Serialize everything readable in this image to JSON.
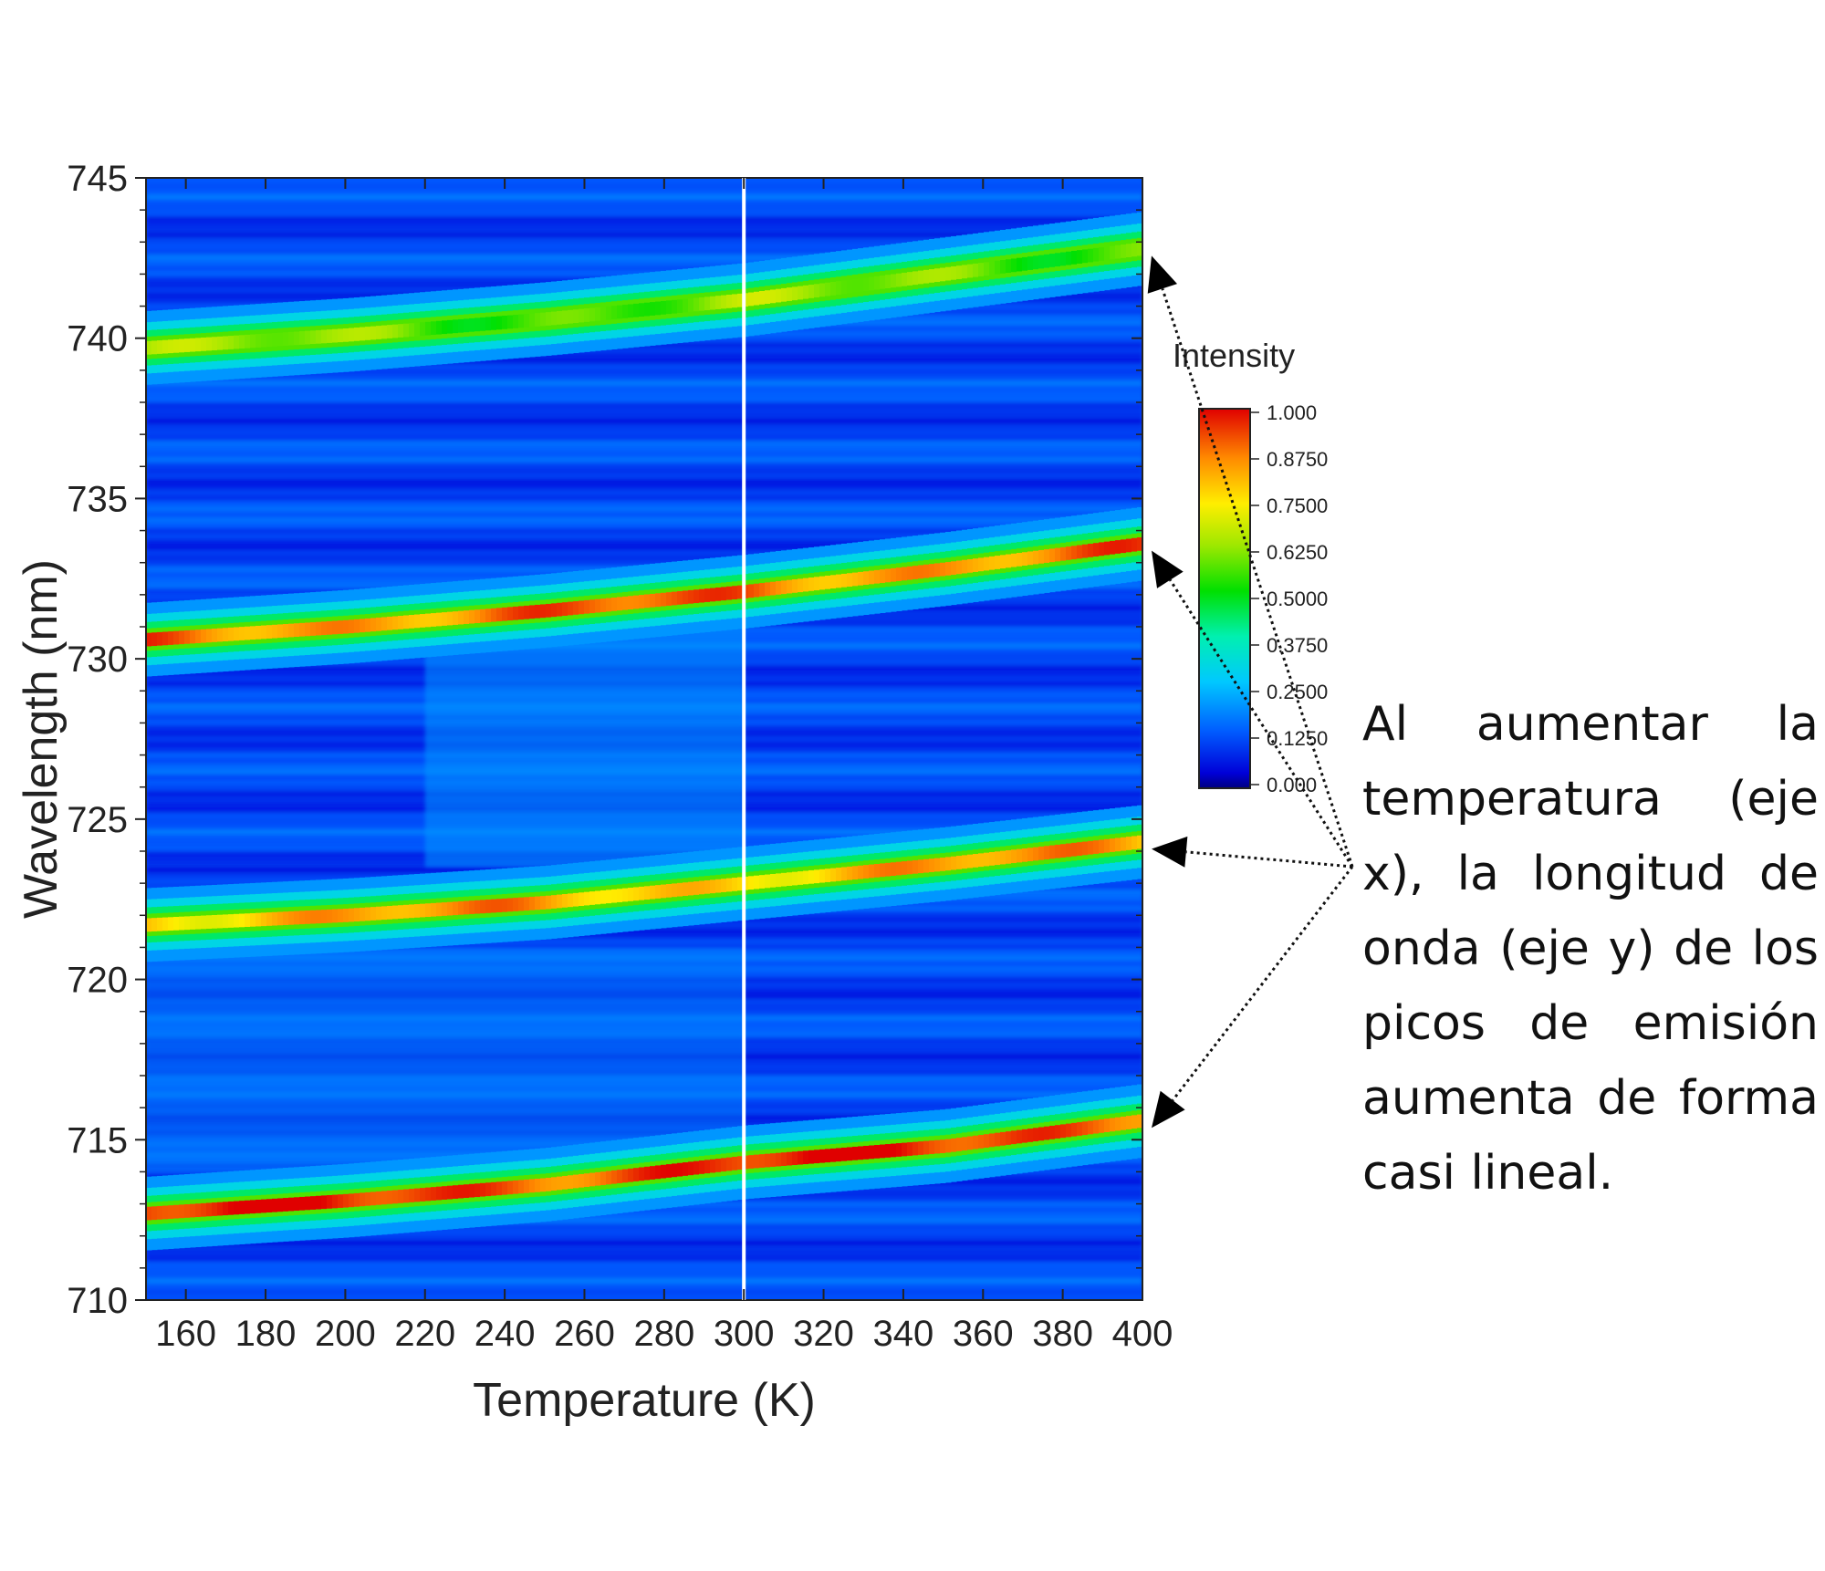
{
  "chart_data": {
    "type": "heatmap",
    "title": "",
    "xlabel": "Temperature (K)",
    "ylabel": "Wavelength (nm)",
    "xlim": [
      150,
      400
    ],
    "ylim": [
      710,
      745
    ],
    "x_ticks": [
      "160",
      "180",
      "200",
      "220",
      "240",
      "260",
      "280",
      "300",
      "320",
      "340",
      "360",
      "380",
      "400"
    ],
    "y_ticks": [
      "710",
      "715",
      "720",
      "725",
      "730",
      "735",
      "740",
      "745"
    ],
    "panel_split_x": 300,
    "colorbar": {
      "title": "Intensity",
      "range": [
        0,
        1
      ],
      "tick_labels": [
        "1.000",
        "0.8750",
        "0.7500",
        "0.6250",
        "0.5000",
        "0.3750",
        "0.2500",
        "0.1250",
        "0.000"
      ]
    },
    "emission_peaks": [
      {
        "points": [
          [
            150,
            739.7
          ],
          [
            200,
            740.1
          ],
          [
            250,
            740.6
          ],
          [
            300,
            741.2
          ],
          [
            350,
            742.0
          ],
          [
            400,
            742.8
          ]
        ],
        "peak_intensity": 0.6
      },
      {
        "points": [
          [
            150,
            730.6
          ],
          [
            200,
            731.0
          ],
          [
            250,
            731.5
          ],
          [
            300,
            732.1
          ],
          [
            350,
            732.8
          ],
          [
            400,
            733.6
          ]
        ],
        "peak_intensity": 0.88
      },
      {
        "points": [
          [
            150,
            721.7
          ],
          [
            200,
            722.0
          ],
          [
            250,
            722.4
          ],
          [
            300,
            723.0
          ],
          [
            350,
            723.6
          ],
          [
            400,
            724.3
          ]
        ],
        "peak_intensity": 0.82
      },
      {
        "points": [
          [
            150,
            712.7
          ],
          [
            200,
            713.1
          ],
          [
            250,
            713.6
          ],
          [
            300,
            714.3
          ],
          [
            350,
            714.8
          ],
          [
            400,
            715.6
          ]
        ],
        "peak_intensity": 0.95
      }
    ],
    "colors": {
      "low": "#0000d8",
      "mid": "#00e000",
      "high": "#e00000",
      "divider": "#ffffff"
    }
  },
  "annotation": {
    "text": "Al aumentar la temperatura (eje x), la longitud de onda (eje y) de los picos de emisión aumenta de forma casi lineal."
  }
}
